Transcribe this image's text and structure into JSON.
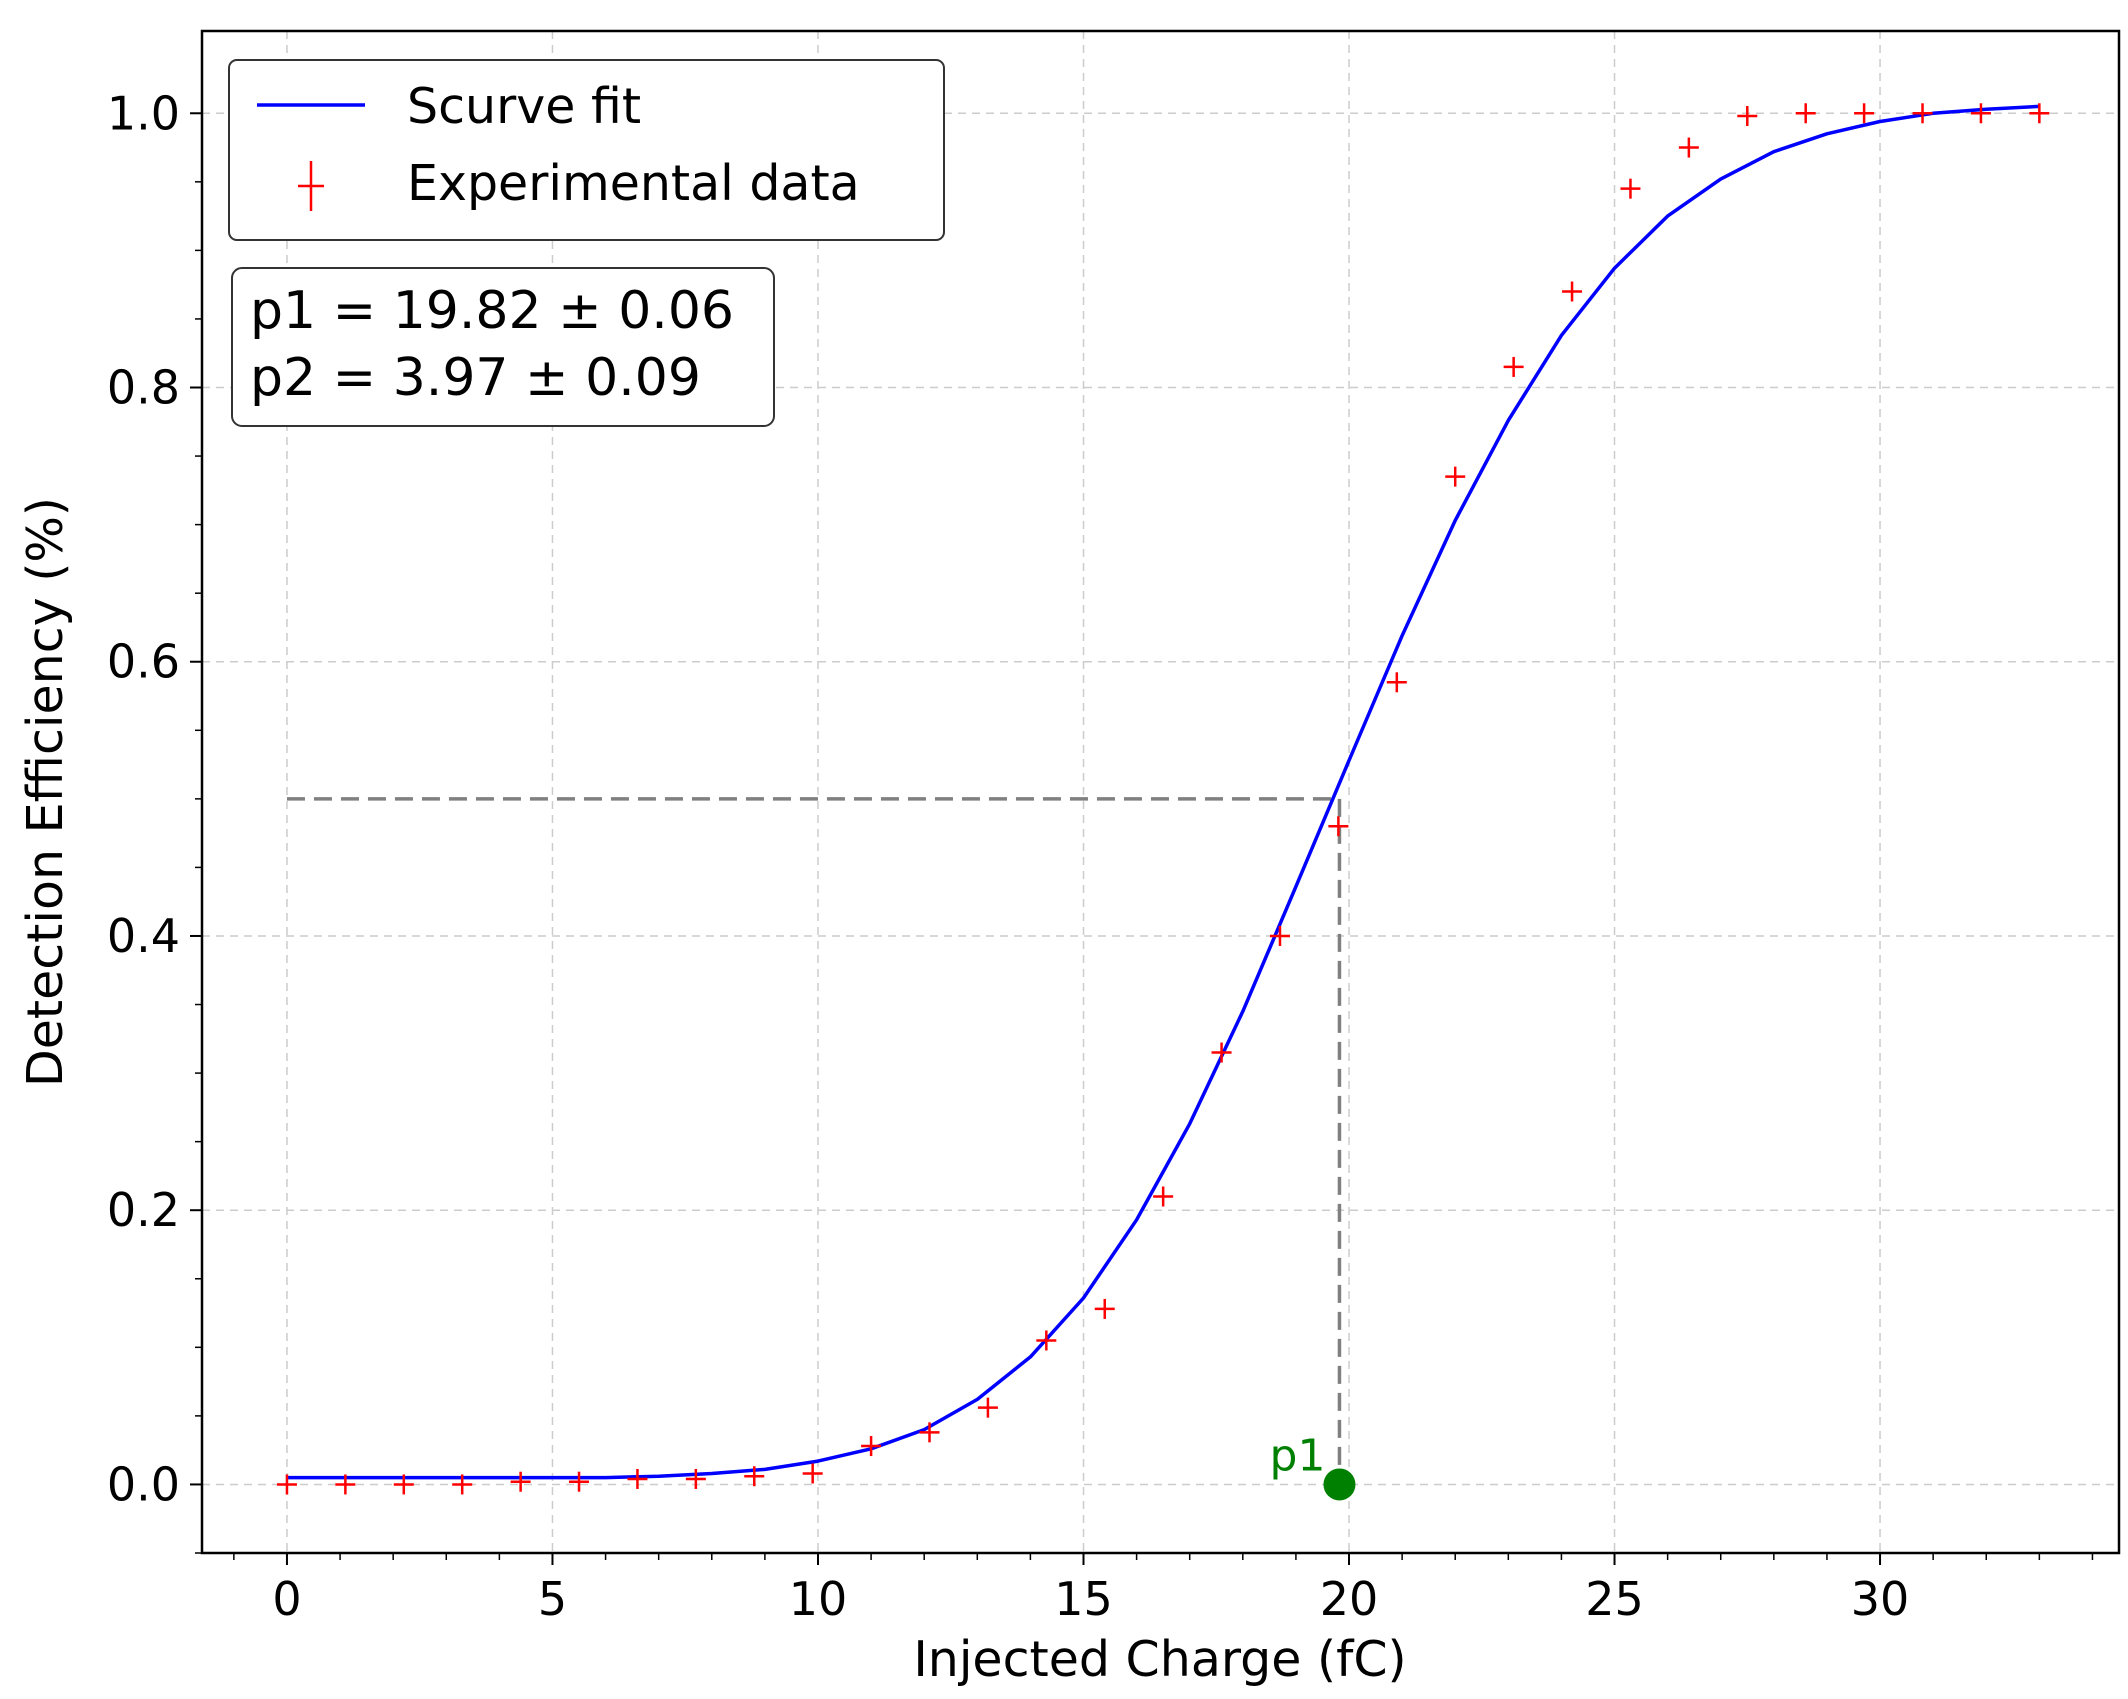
{
  "chart_data": {
    "type": "scatter",
    "xlabel": "Injected Charge (fC)",
    "ylabel": "Detection Efficiency (%)",
    "xlim": [
      -1.6,
      34.5
    ],
    "ylim": [
      -0.05,
      1.06
    ],
    "x_ticks": [
      0,
      5,
      10,
      15,
      20,
      25,
      30
    ],
    "y_ticks": [
      0.0,
      0.2,
      0.4,
      0.6,
      0.8,
      1.0
    ],
    "x_tick_labels": [
      "0",
      "5",
      "10",
      "15",
      "20",
      "25",
      "30"
    ],
    "y_tick_labels": [
      "0.0",
      "0.2",
      "0.4",
      "0.6",
      "0.8",
      "1.0"
    ],
    "grid": true,
    "legend_position": "top-left",
    "series": [
      {
        "name": "Scurve fit",
        "kind": "line",
        "color": "#0000ff",
        "x": [
          0,
          1,
          2,
          3,
          4,
          5,
          6,
          7,
          8,
          9,
          10,
          11,
          12,
          13,
          14,
          15,
          16,
          17,
          18,
          19,
          20,
          21,
          22,
          23,
          24,
          25,
          26,
          27,
          28,
          29,
          30,
          31,
          32,
          33
        ],
        "y": [
          0.005,
          0.005,
          0.005,
          0.005,
          0.005,
          0.005,
          0.005,
          0.006,
          0.008,
          0.011,
          0.017,
          0.026,
          0.04,
          0.062,
          0.093,
          0.136,
          0.193,
          0.263,
          0.345,
          0.436,
          0.528,
          0.619,
          0.703,
          0.776,
          0.838,
          0.887,
          0.925,
          0.952,
          0.972,
          0.985,
          0.994,
          1.0,
          1.003,
          1.005
        ]
      },
      {
        "name": "Experimental data",
        "kind": "scatter",
        "color": "#ff0000",
        "x": [
          0,
          1.1,
          2.2,
          3.3,
          4.4,
          5.5,
          6.6,
          7.7,
          8.8,
          9.9,
          11.0,
          12.1,
          13.2,
          14.3,
          15.4,
          16.5,
          17.6,
          18.7,
          19.8,
          20.9,
          22.0,
          23.1,
          24.2,
          25.3,
          26.4,
          27.5,
          28.6,
          29.7,
          30.8,
          31.9,
          33.0
        ],
        "y": [
          0.0,
          0.0,
          0.0,
          0.0,
          0.002,
          0.002,
          0.004,
          0.004,
          0.006,
          0.008,
          0.028,
          0.038,
          0.056,
          0.105,
          0.128,
          0.21,
          0.315,
          0.4,
          0.48,
          0.585,
          0.735,
          0.815,
          0.87,
          0.945,
          0.975,
          0.998,
          1.0,
          1.0,
          1.0,
          1.0,
          1.0
        ]
      }
    ],
    "threshold": {
      "x": 19.82,
      "y": 0.5
    },
    "p1_marker": {
      "x": 19.82,
      "y": 0.0,
      "label": "p1",
      "color": "#008000"
    },
    "parameter_box": {
      "lines": [
        "p1 = 19.82 ± 0.06",
        "p2 = 3.97 ± 0.09"
      ]
    }
  }
}
